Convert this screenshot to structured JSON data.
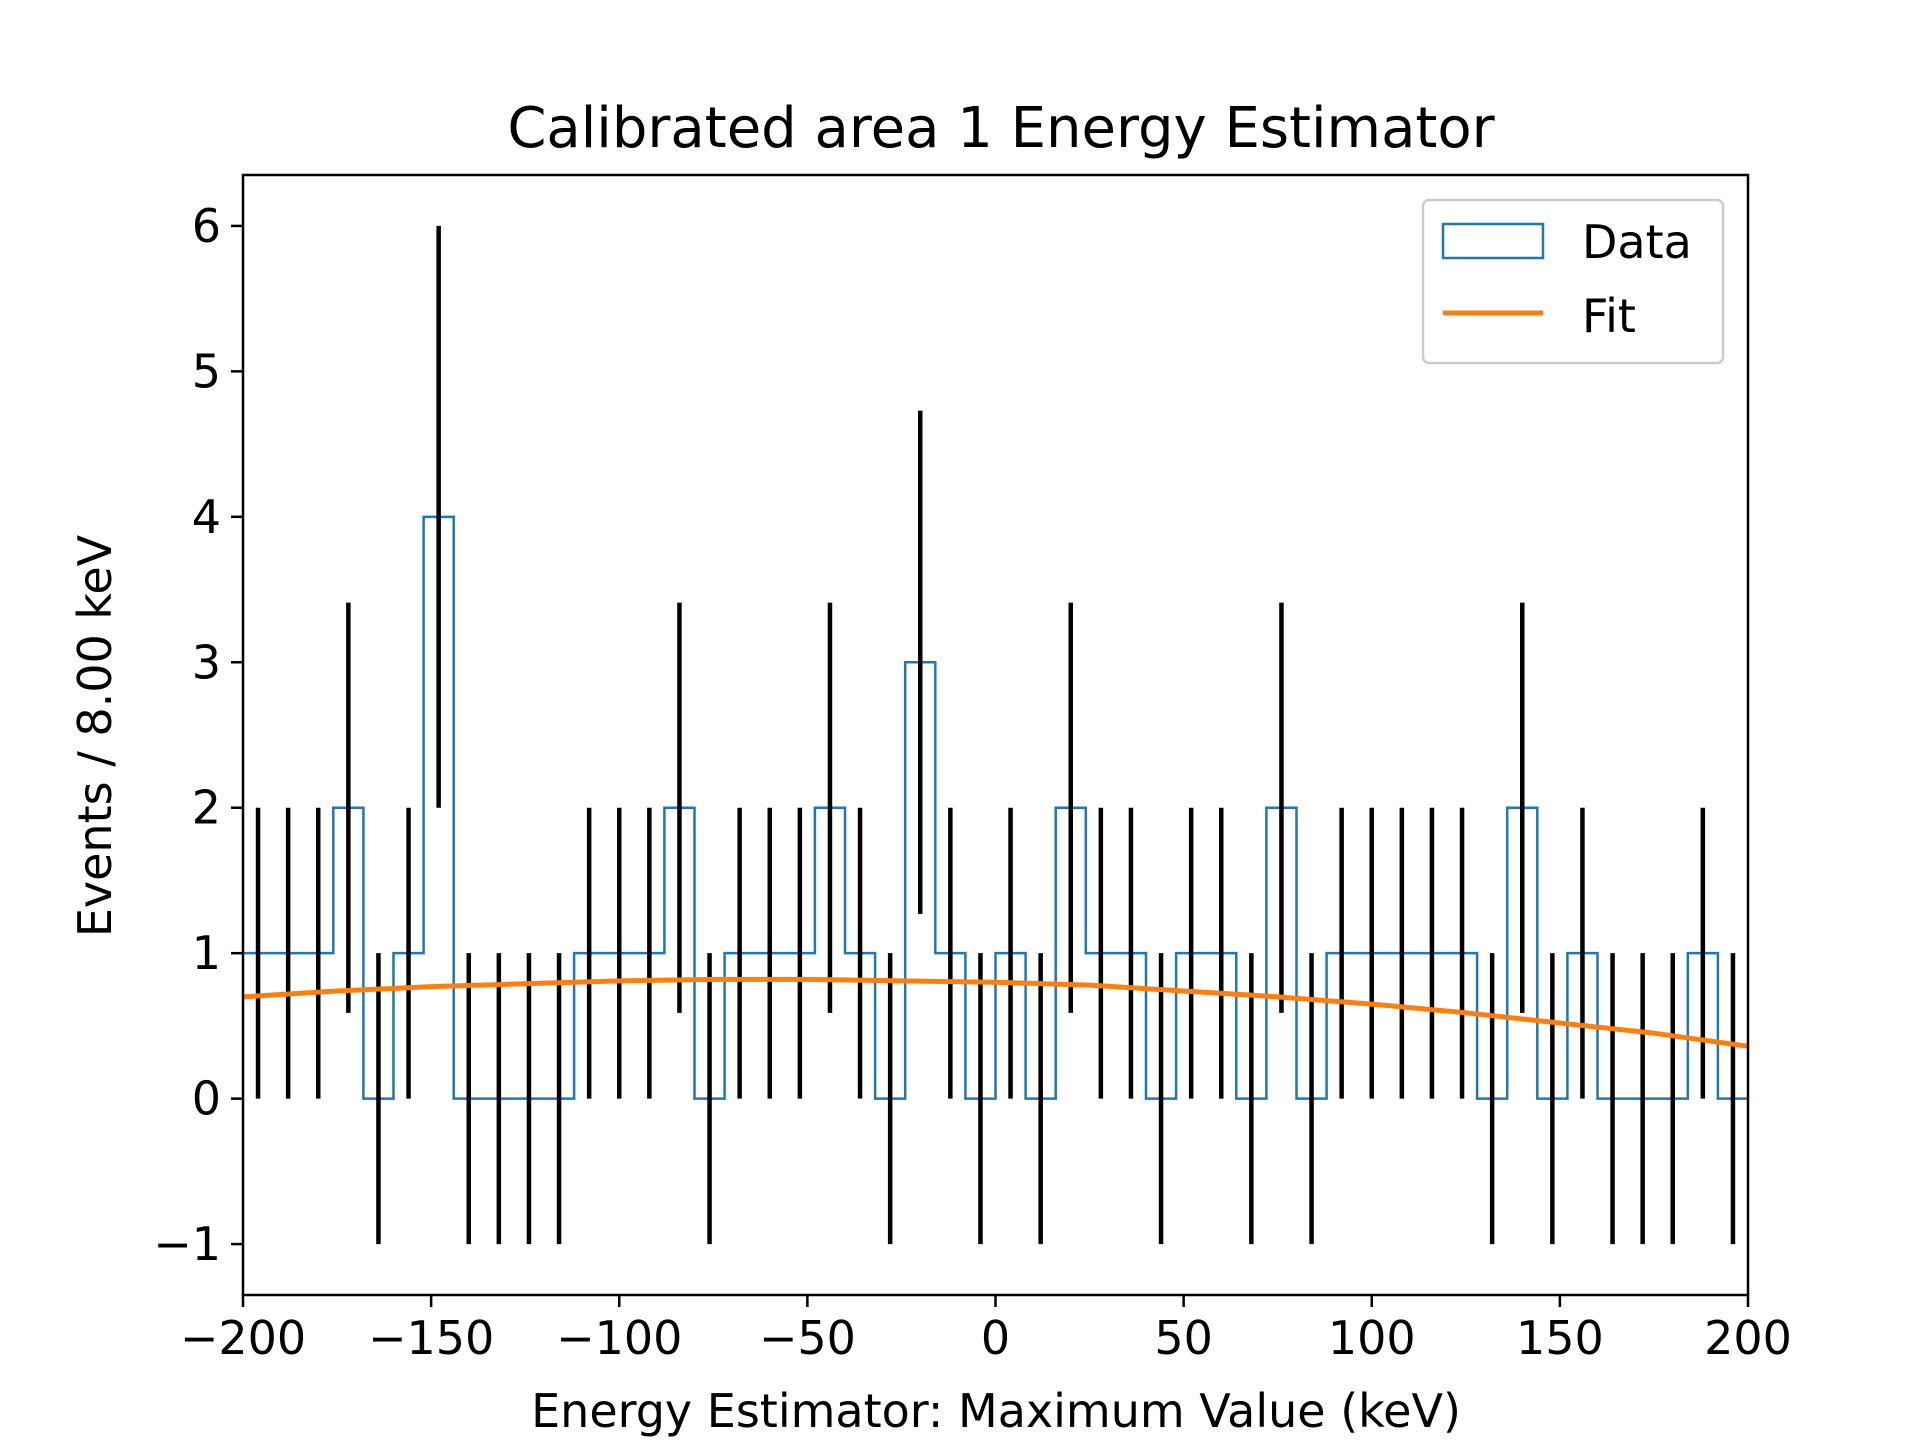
{
  "chart_data": {
    "type": "histogram",
    "title": "Calibrated area 1 Energy Estimator",
    "xlabel": "Energy Estimator: Maximum Value (keV)",
    "ylabel": "Events / 8.00 keV",
    "xlim": [
      -200,
      200
    ],
    "ylim": [
      -1.35,
      6.35
    ],
    "xticks": [
      -200,
      -150,
      -100,
      -50,
      0,
      50,
      100,
      150,
      200
    ],
    "xtick_labels": [
      "−200",
      "−150",
      "−100",
      "−50",
      "0",
      "50",
      "100",
      "150",
      "200"
    ],
    "yticks": [
      -1,
      0,
      1,
      2,
      3,
      4,
      5,
      6
    ],
    "ytick_labels": [
      "−1",
      "0",
      "1",
      "2",
      "3",
      "4",
      "5",
      "6"
    ],
    "bin_width": 8,
    "bin_start": -200,
    "series": [
      {
        "name": "Data",
        "color": "#1f77b4",
        "counts": [
          1,
          1,
          1,
          2,
          0,
          1,
          4,
          0,
          0,
          0,
          0,
          1,
          1,
          1,
          2,
          0,
          1,
          1,
          1,
          2,
          1,
          0,
          3,
          1,
          0,
          1,
          0,
          2,
          1,
          1,
          0,
          1,
          1,
          0,
          2,
          0,
          1,
          1,
          1,
          1,
          1,
          0,
          2,
          0,
          1,
          0,
          0,
          0,
          1,
          0
        ]
      },
      {
        "name": "Fit",
        "color": "#ff7f0e",
        "x": [
          -200,
          -175,
          -150,
          -125,
          -100,
          -75,
          -50,
          -25,
          0,
          25,
          50,
          75,
          100,
          125,
          150,
          175,
          200
        ],
        "y": [
          0.7,
          0.74,
          0.77,
          0.79,
          0.81,
          0.82,
          0.82,
          0.81,
          0.8,
          0.78,
          0.74,
          0.7,
          0.65,
          0.59,
          0.52,
          0.45,
          0.36
        ]
      }
    ],
    "error_bars": {
      "color": "#000000",
      "centers": [
        -196,
        -188,
        -180,
        -172,
        -164,
        -156,
        -148,
        -140,
        -132,
        -124,
        -116,
        -108,
        -100,
        -92,
        -84,
        -76,
        -68,
        -60,
        -52,
        -44,
        -36,
        -28,
        -20,
        -12,
        -4,
        4,
        12,
        20,
        28,
        36,
        44,
        52,
        60,
        68,
        76,
        84,
        92,
        100,
        108,
        116,
        124,
        132,
        140,
        148,
        156,
        164,
        172,
        180,
        188,
        196
      ],
      "values": [
        1,
        1,
        1,
        2,
        0,
        1,
        4,
        0,
        0,
        0,
        0,
        1,
        1,
        1,
        2,
        0,
        1,
        1,
        1,
        2,
        1,
        0,
        3,
        1,
        0,
        1,
        0,
        2,
        1,
        1,
        0,
        1,
        1,
        0,
        2,
        0,
        1,
        1,
        1,
        1,
        1,
        0,
        2,
        0,
        1,
        0,
        0,
        0,
        1,
        0
      ],
      "lower": [
        0,
        0,
        0,
        0.59,
        -1,
        0,
        2,
        -1,
        -1,
        -1,
        -1,
        0,
        0,
        0,
        0.59,
        -1,
        0,
        0,
        0,
        0.59,
        0,
        -1,
        1.27,
        0,
        -1,
        0,
        -1,
        0.59,
        0,
        0,
        -1,
        0,
        0,
        -1,
        0.59,
        -1,
        0,
        0,
        0,
        0,
        0,
        -1,
        0.59,
        -1,
        0,
        -1,
        -1,
        -1,
        0,
        -1
      ],
      "upper": [
        2,
        2,
        2,
        3.41,
        1,
        2,
        6,
        1,
        1,
        1,
        1,
        2,
        2,
        2,
        3.41,
        1,
        2,
        2,
        2,
        3.41,
        2,
        1,
        4.73,
        2,
        1,
        2,
        1,
        3.41,
        2,
        2,
        1,
        2,
        2,
        1,
        3.41,
        1,
        2,
        2,
        2,
        2,
        2,
        1,
        3.41,
        1,
        2,
        1,
        1,
        1,
        2,
        1
      ]
    },
    "legend": {
      "position": "top-right",
      "entries": [
        "Data",
        "Fit"
      ]
    },
    "grid": false
  }
}
